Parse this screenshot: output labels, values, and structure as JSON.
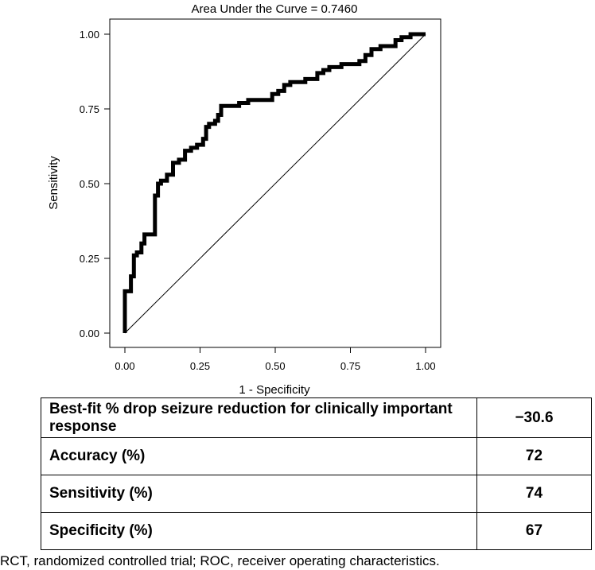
{
  "chart_data": {
    "type": "line",
    "title": "Area Under the Curve = 0.7460",
    "xlabel": "1 - Specificity",
    "ylabel": "Sensitivity",
    "xlim": [
      0,
      1
    ],
    "ylim": [
      0,
      1
    ],
    "xticks": [
      "0.00",
      "0.25",
      "0.50",
      "0.75",
      "1.00"
    ],
    "yticks": [
      "0.00",
      "0.25",
      "0.50",
      "0.75",
      "1.00"
    ],
    "grid": false,
    "reference_line": {
      "x": [
        0,
        1
      ],
      "y": [
        0,
        1
      ]
    },
    "series": [
      {
        "x": [
          0,
          0,
          0.02,
          0.02,
          0.03,
          0.03,
          0.04,
          0.04,
          0.055,
          0.055,
          0.065,
          0.065,
          0.075,
          0.075,
          0.1,
          0.1,
          0.11,
          0.11,
          0.12,
          0.12,
          0.14,
          0.14,
          0.16,
          0.16,
          0.18,
          0.18,
          0.2,
          0.2,
          0.22,
          0.22,
          0.24,
          0.24,
          0.26,
          0.26,
          0.27,
          0.27,
          0.28,
          0.28,
          0.3,
          0.3,
          0.31,
          0.31,
          0.32,
          0.32,
          0.34,
          0.34,
          0.38,
          0.38,
          0.41,
          0.41,
          0.49,
          0.49,
          0.51,
          0.51,
          0.53,
          0.53,
          0.55,
          0.55,
          0.56,
          0.56,
          0.6,
          0.6,
          0.64,
          0.64,
          0.66,
          0.66,
          0.68,
          0.68,
          0.72,
          0.72,
          0.78,
          0.78,
          0.8,
          0.8,
          0.82,
          0.82,
          0.85,
          0.85,
          0.9,
          0.9,
          0.92,
          0.92,
          0.95,
          0.95,
          1
        ],
        "y": [
          0,
          0.14,
          0.14,
          0.19,
          0.19,
          0.26,
          0.26,
          0.27,
          0.27,
          0.3,
          0.3,
          0.33,
          0.33,
          0.33,
          0.33,
          0.46,
          0.46,
          0.5,
          0.5,
          0.51,
          0.51,
          0.53,
          0.53,
          0.57,
          0.57,
          0.58,
          0.58,
          0.61,
          0.61,
          0.62,
          0.62,
          0.63,
          0.63,
          0.65,
          0.65,
          0.69,
          0.69,
          0.7,
          0.7,
          0.71,
          0.71,
          0.73,
          0.73,
          0.76,
          0.76,
          0.76,
          0.76,
          0.77,
          0.77,
          0.78,
          0.78,
          0.8,
          0.8,
          0.81,
          0.81,
          0.83,
          0.83,
          0.84,
          0.84,
          0.84,
          0.84,
          0.85,
          0.85,
          0.87,
          0.87,
          0.88,
          0.88,
          0.89,
          0.89,
          0.9,
          0.9,
          0.91,
          0.91,
          0.93,
          0.93,
          0.95,
          0.95,
          0.96,
          0.96,
          0.98,
          0.98,
          0.99,
          0.99,
          1,
          1
        ]
      }
    ]
  },
  "table": {
    "rows": [
      {
        "label": "Best-fit % drop seizure reduction for clinically important response",
        "value": "−30.6"
      },
      {
        "label": "Accuracy (%)",
        "value": "72"
      },
      {
        "label": "Sensitivity (%)",
        "value": "74"
      },
      {
        "label": "Specificity (%)",
        "value": "67"
      }
    ]
  },
  "footnote": "RCT, randomized controlled trial; ROC, receiver operating characteristics."
}
